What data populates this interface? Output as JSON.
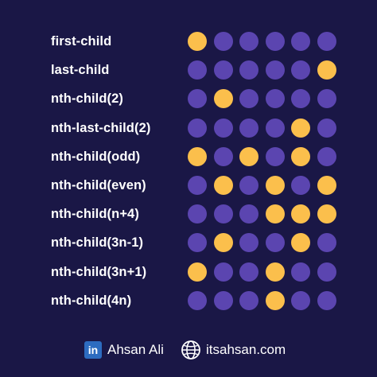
{
  "colors": {
    "background": "#1a1746",
    "dot_default": "#5b45b0",
    "dot_selected": "#fbbf4c"
  },
  "rows": [
    {
      "label": "first-child",
      "selected": [
        1
      ]
    },
    {
      "label": "last-child",
      "selected": [
        6
      ]
    },
    {
      "label": "nth-child(2)",
      "selected": [
        2
      ]
    },
    {
      "label": "nth-last-child(2)",
      "selected": [
        5
      ]
    },
    {
      "label": "nth-child(odd)",
      "selected": [
        1,
        3,
        5
      ]
    },
    {
      "label": "nth-child(even)",
      "selected": [
        2,
        4,
        6
      ]
    },
    {
      "label": "nth-child(n+4)",
      "selected": [
        4,
        5,
        6
      ]
    },
    {
      "label": "nth-child(3n-1)",
      "selected": [
        2,
        5
      ]
    },
    {
      "label": "nth-child(3n+1)",
      "selected": [
        1,
        4
      ]
    },
    {
      "label": "nth-child(4n)",
      "selected": [
        4
      ]
    }
  ],
  "dots_per_row": 6,
  "footer": {
    "linkedin_icon": "linkedin-icon",
    "linkedin_glyph": "in",
    "author": "Ahsan Ali",
    "globe_icon": "globe-icon",
    "website": "itsahsan.com"
  }
}
